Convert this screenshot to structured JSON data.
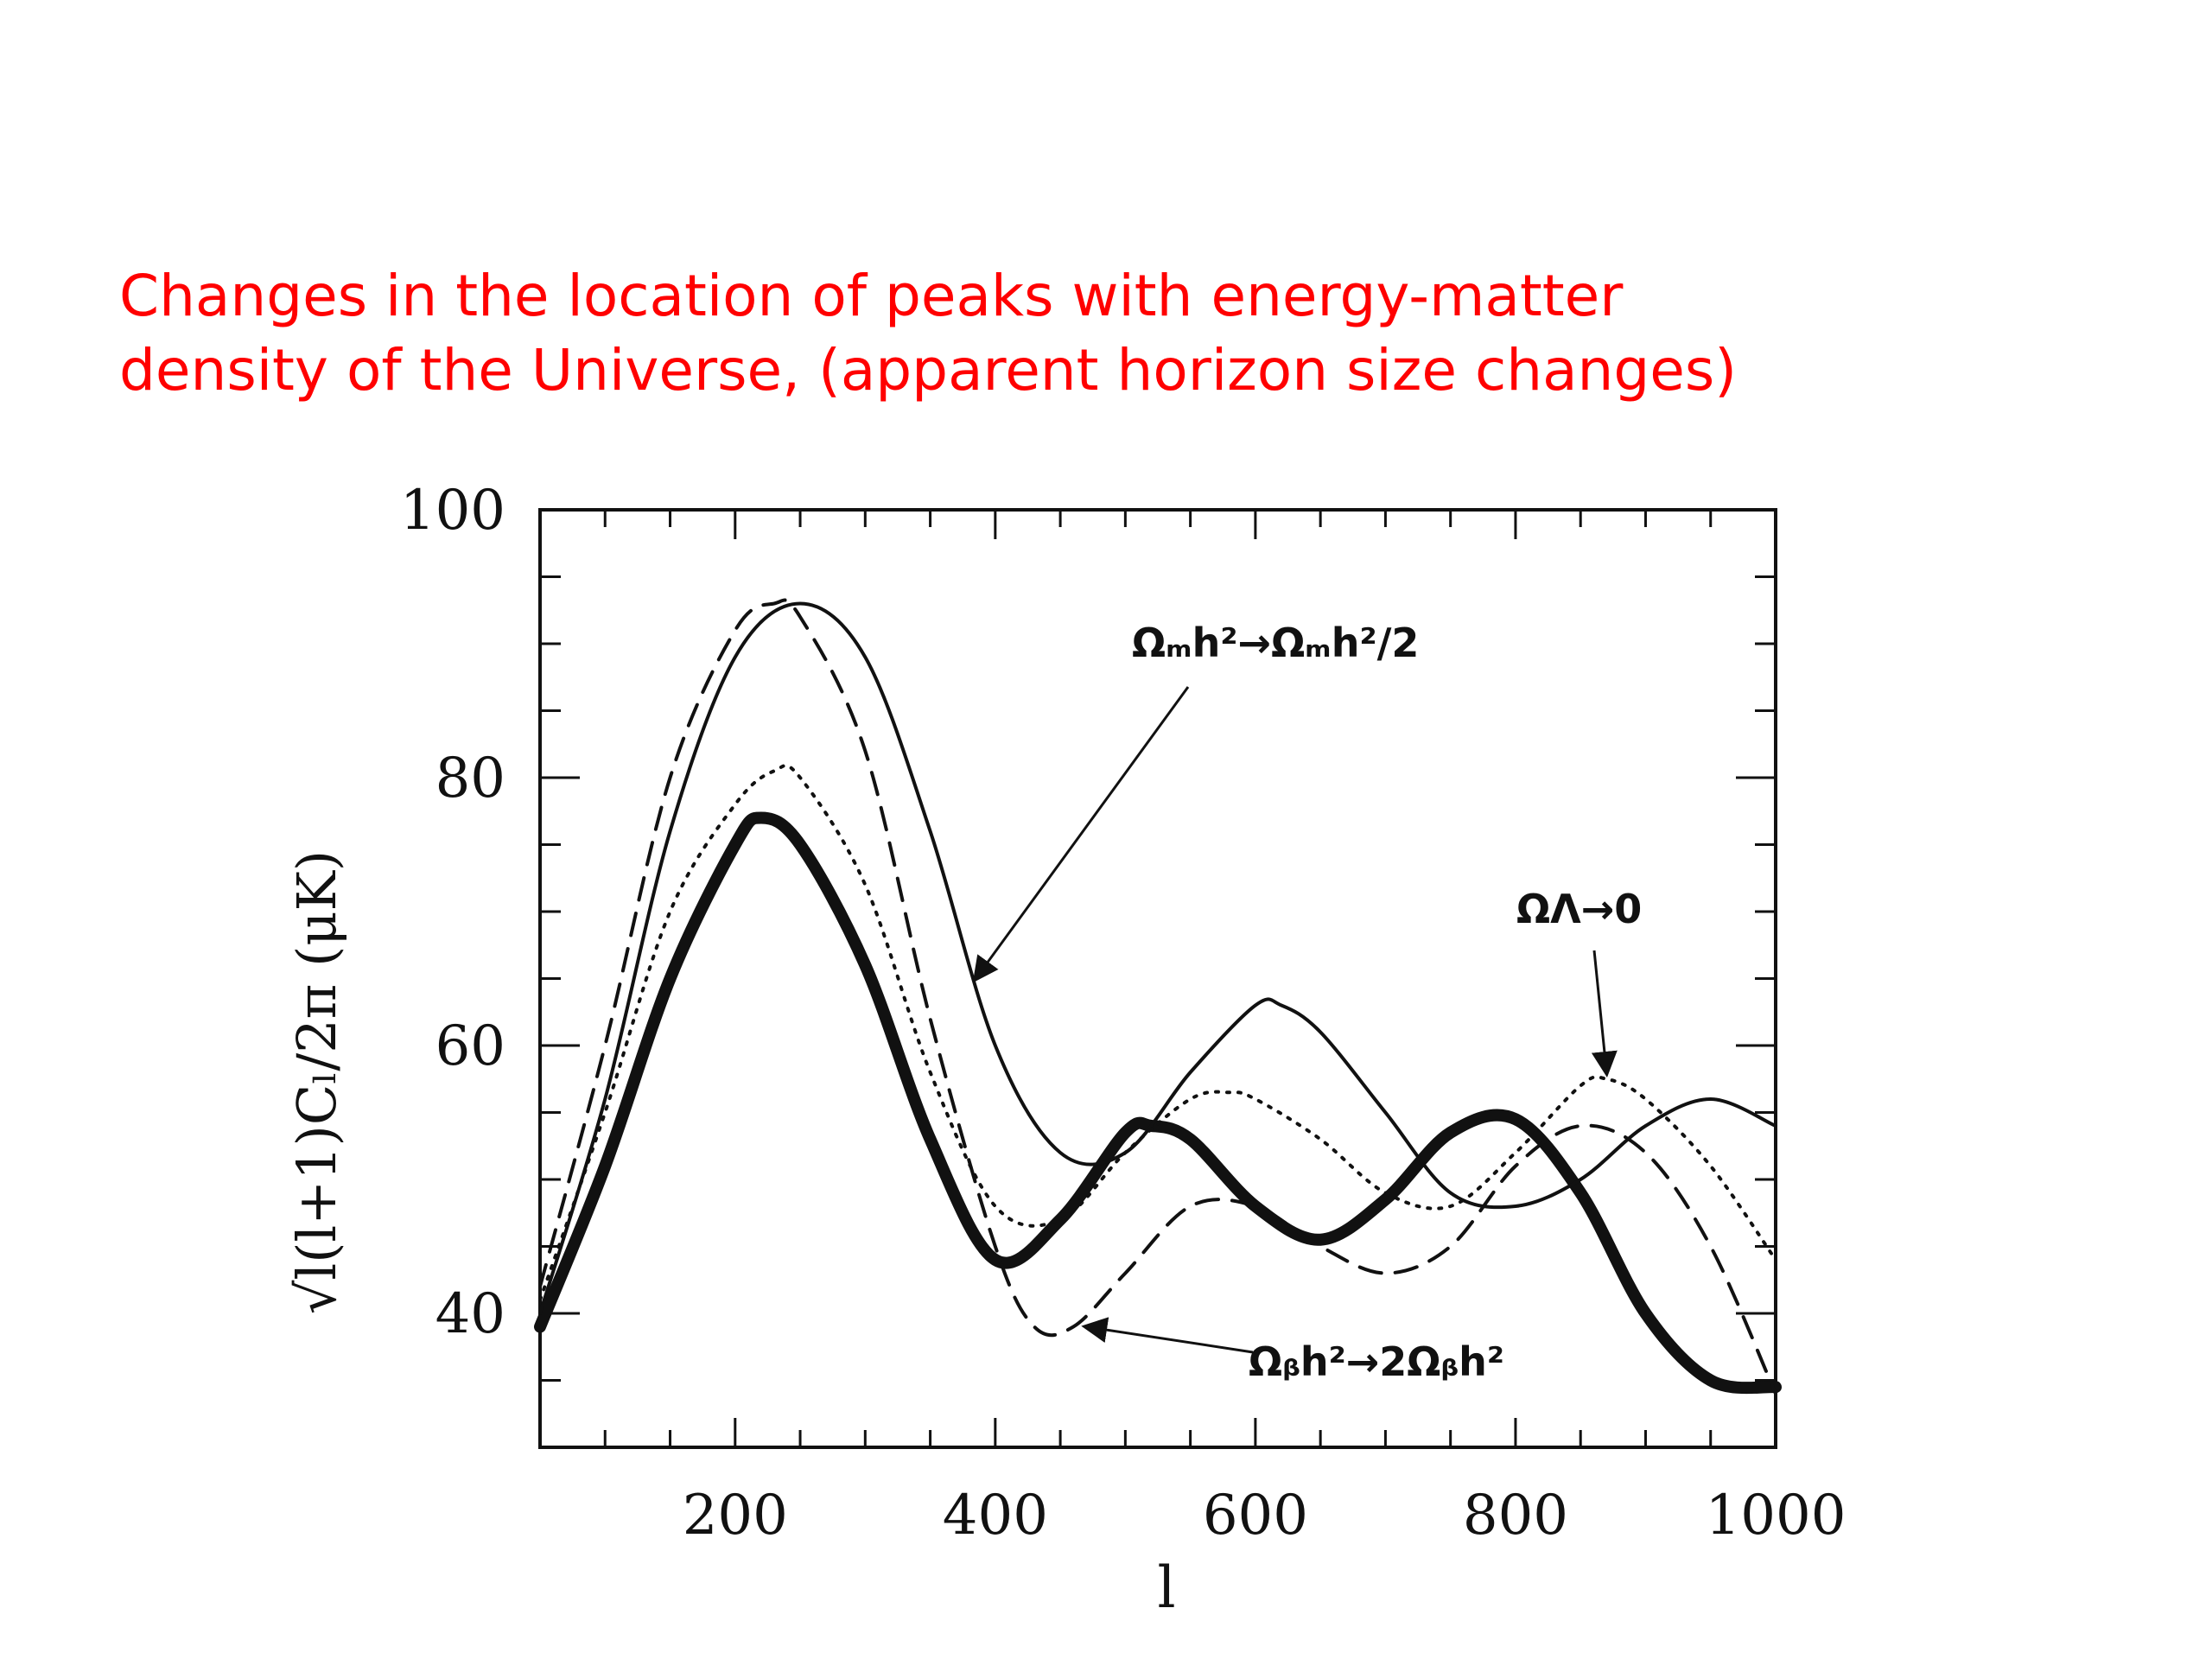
{
  "slide": {
    "title_line1": "Changes in the location of peaks with energy-matter",
    "title_line2": "density of the Universe, (apparent horizon size changes)"
  },
  "chart_data": {
    "type": "line",
    "xlabel": "l",
    "ylabel": "√l(l+1)Cₗ/2π (μK)",
    "xlim": [
      50,
      1000
    ],
    "ylim": [
      30,
      100
    ],
    "xticks": [
      200,
      400,
      600,
      800,
      1000
    ],
    "yticks": [
      40,
      60,
      80,
      100
    ],
    "grid": false,
    "series": [
      {
        "style": "thick",
        "x": [
          50,
          100,
          150,
          200,
          220,
          250,
          300,
          350,
          400,
          450,
          500,
          520,
          550,
          600,
          650,
          700,
          750,
          800,
          850,
          900,
          950,
          1000
        ],
        "y": [
          39,
          51,
          65,
          75,
          77,
          75,
          66,
          53,
          44,
          47,
          53.5,
          54,
          53,
          48,
          45.5,
          48.5,
          53.5,
          54.5,
          49,
          40,
          35,
          34.5
        ]
      },
      {
        "style": "thin-solid",
        "x": [
          50,
          100,
          150,
          200,
          250,
          300,
          350,
          400,
          450,
          500,
          550,
          600,
          620,
          650,
          700,
          750,
          800,
          850,
          900,
          950,
          1000
        ],
        "y": [
          40,
          56,
          76,
          89,
          93,
          89,
          76,
          60,
          52,
          52,
          58,
          63,
          63,
          61,
          55,
          49,
          48,
          50,
          54,
          56,
          54
        ]
      },
      {
        "style": "dashed",
        "x": [
          50,
          100,
          150,
          200,
          230,
          250,
          300,
          350,
          400,
          430,
          460,
          500,
          550,
          600,
          650,
          700,
          750,
          800,
          850,
          900,
          950,
          1000
        ],
        "y": [
          42,
          60,
          80,
          91,
          93,
          92,
          82,
          62,
          45,
          39,
          39,
          43,
          48,
          48,
          45,
          43,
          45,
          51,
          54,
          52,
          45,
          34
        ]
      },
      {
        "style": "dotted",
        "x": [
          50,
          100,
          150,
          200,
          230,
          250,
          300,
          350,
          400,
          450,
          500,
          550,
          580,
          600,
          650,
          700,
          750,
          800,
          850,
          870,
          900,
          950,
          1000
        ],
        "y": [
          41,
          55,
          70,
          78,
          80.5,
          80,
          72,
          58,
          48,
          47,
          52,
          56,
          56.5,
          56,
          53,
          49,
          48,
          52,
          57,
          57.5,
          56,
          51,
          44
        ]
      }
    ],
    "annotations": [
      {
        "text": "Ωₘh²→Ωₘh²/2",
        "x": 680,
        "y": 91.5,
        "arrow_to": [
          385,
          65
        ]
      },
      {
        "text": "ΩΛ→0",
        "x": 870,
        "y": 70.5,
        "arrow_to": [
          870,
          58
        ]
      },
      {
        "text": "Ωᵦh²→2Ωᵦh²",
        "x": 760,
        "y": 37,
        "arrow_to": [
          470,
          39
        ]
      }
    ]
  }
}
